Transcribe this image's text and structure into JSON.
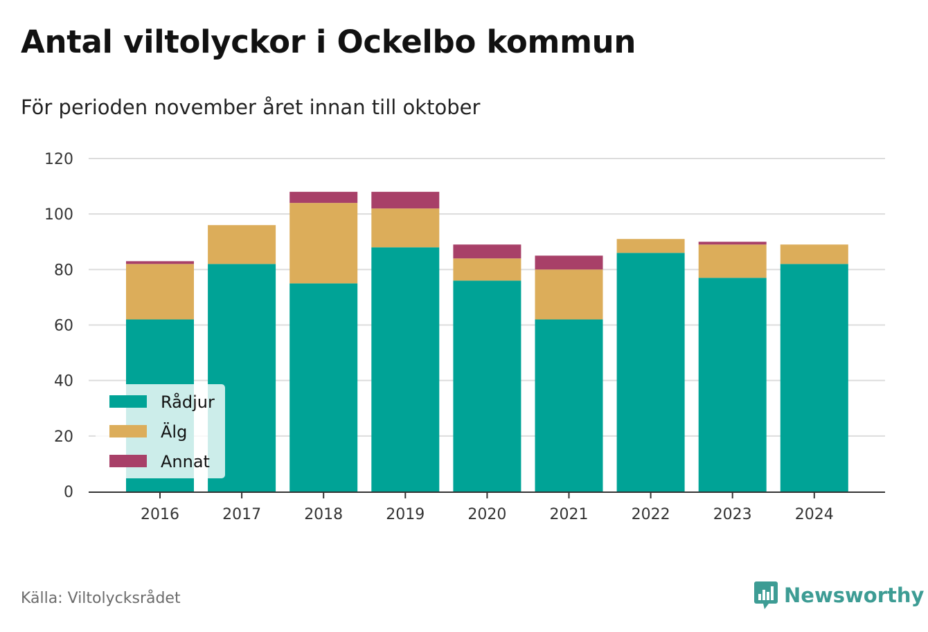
{
  "title": "Antal viltolyckor i Ockelbo kommun",
  "subtitle": "För perioden november året innan till oktober",
  "source": "Källa: Viltolycksrådet",
  "brand": "Newsworthy",
  "colors": {
    "radjur": "#00a396",
    "alg": "#dcad5a",
    "annat": "#a84068",
    "grid": "#dcdcdc",
    "axis": "#333333",
    "brand": "#3d9c94"
  },
  "chart_data": {
    "type": "bar",
    "stacked": true,
    "categories": [
      "2016",
      "2017",
      "2018",
      "2019",
      "2020",
      "2021",
      "2022",
      "2023",
      "2024"
    ],
    "series": [
      {
        "name": "Rådjur",
        "color": "#00a396",
        "values": [
          62,
          82,
          75,
          88,
          76,
          62,
          86,
          77,
          82
        ]
      },
      {
        "name": "Älg",
        "color": "#dcad5a",
        "values": [
          20,
          14,
          29,
          14,
          8,
          18,
          5,
          12,
          7
        ]
      },
      {
        "name": "Annat",
        "color": "#a84068",
        "values": [
          1,
          0,
          4,
          6,
          5,
          5,
          0,
          1,
          0
        ]
      }
    ],
    "yticks": [
      0,
      20,
      40,
      60,
      80,
      100,
      120
    ],
    "ylim": [
      0,
      120
    ],
    "grid": true,
    "legend_position": "bottom-left"
  }
}
